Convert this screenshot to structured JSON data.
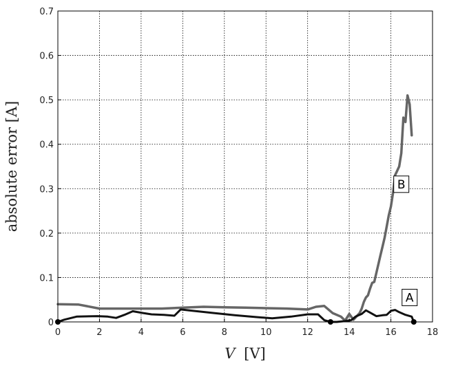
{
  "chart_data": {
    "type": "line",
    "title": "",
    "xlabel_italic": "V",
    "xlabel_unit": "[V]",
    "ylabel": "absolute error [A]",
    "xlim": [
      0,
      18
    ],
    "ylim": [
      0,
      0.7
    ],
    "xticks": [
      "0",
      "2",
      "4",
      "6",
      "8",
      "10",
      "12",
      "14",
      "16",
      "18"
    ],
    "yticks": [
      "0",
      "0.1",
      "0.2",
      "0.3",
      "0.4",
      "0.5",
      "0.6",
      "0.7"
    ],
    "grid": true,
    "series": [
      {
        "name": "A",
        "color": "#111111",
        "markers_at": [
          0,
          2,
          3
        ],
        "x": [
          0.0,
          0.3,
          0.9,
          1.9,
          2.4,
          2.8,
          3.2,
          3.6,
          4.1,
          4.5,
          5.1,
          5.6,
          5.9,
          6.5,
          7.5,
          8.5,
          9.5,
          10.3,
          11.2,
          12.0,
          12.5,
          12.8,
          13.1,
          13.4,
          13.8,
          14.1,
          14.3,
          14.6,
          14.8,
          15.0,
          15.3,
          15.6,
          15.8,
          16.0,
          16.2,
          16.4,
          16.7,
          17.0,
          17.1
        ],
        "y": [
          0.0,
          0.005,
          0.012,
          0.013,
          0.012,
          0.009,
          0.016,
          0.024,
          0.02,
          0.017,
          0.016,
          0.014,
          0.028,
          0.025,
          0.02,
          0.015,
          0.011,
          0.008,
          0.012,
          0.017,
          0.017,
          0.004,
          0.0,
          0.0,
          0.002,
          0.004,
          0.012,
          0.018,
          0.026,
          0.021,
          0.013,
          0.015,
          0.016,
          0.025,
          0.027,
          0.022,
          0.016,
          0.012,
          0.0
        ]
      },
      {
        "name": "B",
        "color": "#666666",
        "x": [
          0.0,
          1.0,
          2.0,
          4.0,
          5.0,
          6.0,
          7.0,
          8.0,
          9.0,
          10.0,
          11.0,
          12.0,
          12.4,
          12.8,
          13.2,
          13.6,
          13.8,
          14.0,
          14.2,
          14.4,
          14.5,
          14.6,
          14.7,
          14.8,
          14.9,
          15.0,
          15.1,
          15.2,
          15.3,
          15.4,
          15.5,
          15.6,
          15.7,
          15.8,
          15.9,
          16.0,
          16.1,
          16.2,
          16.3,
          16.4,
          16.5,
          16.6,
          16.7,
          16.8,
          16.9,
          17.0
        ],
        "y": [
          0.04,
          0.039,
          0.03,
          0.03,
          0.03,
          0.032,
          0.034,
          0.033,
          0.032,
          0.031,
          0.03,
          0.028,
          0.034,
          0.036,
          0.02,
          0.012,
          0.003,
          0.018,
          0.005,
          0.015,
          0.02,
          0.03,
          0.045,
          0.055,
          0.06,
          0.075,
          0.088,
          0.09,
          0.11,
          0.13,
          0.15,
          0.17,
          0.19,
          0.215,
          0.24,
          0.26,
          0.29,
          0.33,
          0.34,
          0.35,
          0.38,
          0.46,
          0.45,
          0.51,
          0.49,
          0.42
        ]
      }
    ],
    "annotations": [
      {
        "text": "B",
        "x": 16.5,
        "y": 0.31
      },
      {
        "text": "A",
        "x": 16.9,
        "y": 0.055
      }
    ]
  }
}
